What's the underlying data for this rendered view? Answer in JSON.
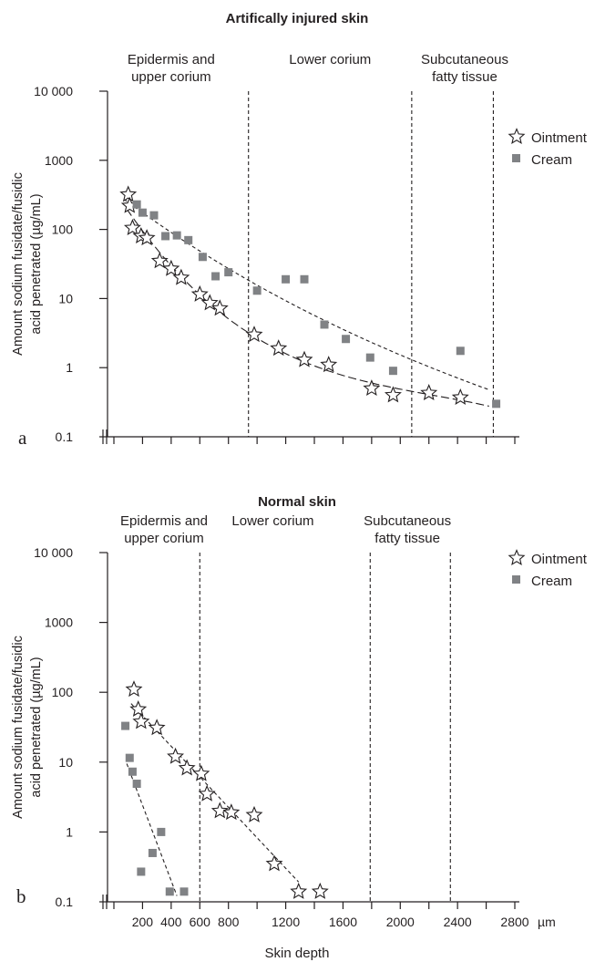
{
  "chart_data": [
    {
      "type": "scatter",
      "panel_label": "a",
      "title": "Artifically injured skin",
      "ylabel_lines": [
        "Amount sodium fusidate/fusidic",
        "acid penetrated (µg/mL)"
      ],
      "xlabel": "",
      "y_scale": "log",
      "ylim": [
        0.1,
        10000
      ],
      "xlim": [
        0,
        2800
      ],
      "y_ticks": [
        "10 000",
        "1000",
        "100",
        "10",
        "1",
        "0.1"
      ],
      "regions": [
        {
          "lines": [
            "Epidermis and",
            "upper corium"
          ],
          "center_x": 400
        },
        {
          "lines": [
            "Lower corium"
          ],
          "center_x": 1510
        },
        {
          "lines": [
            "Subcutaneous",
            "fatty tissue"
          ],
          "center_x": 2450
        }
      ],
      "boundaries": [
        940,
        2080,
        2650
      ],
      "legend": {
        "position": "right",
        "entries": [
          "Ointment",
          "Cream"
        ]
      },
      "series": [
        {
          "name": "Ointment",
          "marker": "star",
          "x": [
            100,
            110,
            130,
            190,
            230,
            320,
            400,
            470,
            600,
            670,
            740,
            980,
            1150,
            1330,
            1500,
            1800,
            1950,
            2200,
            2420
          ],
          "y": [
            320,
            220,
            105,
            80,
            75,
            35,
            27,
            20,
            11.5,
            8.6,
            7.2,
            3.0,
            1.9,
            1.3,
            1.1,
            0.5,
            0.4,
            0.43,
            0.37
          ]
        },
        {
          "name": "Cream",
          "marker": "square",
          "x": [
            160,
            200,
            280,
            360,
            440,
            520,
            620,
            710,
            800,
            1000,
            1200,
            1330,
            1470,
            1620,
            1790,
            1950,
            2420,
            2670
          ],
          "y": [
            230,
            175,
            160,
            80,
            82,
            70,
            40,
            21,
            24,
            13,
            19,
            19,
            4.2,
            2.6,
            1.4,
            0.9,
            1.75,
            0.3
          ]
        }
      ]
    },
    {
      "type": "scatter",
      "panel_label": "b",
      "title": "Normal skin",
      "ylabel_lines": [
        "Amount sodium fusidate/fusidic",
        "acid penetrated (µg/mL)"
      ],
      "xlabel": "Skin depth",
      "x_unit": "µm",
      "y_scale": "log",
      "ylim": [
        0.1,
        10000
      ],
      "xlim": [
        0,
        2800
      ],
      "x_ticks": [
        "200",
        "400",
        "600",
        "800",
        "1200",
        "1600",
        "2000",
        "2400",
        "2800"
      ],
      "y_ticks": [
        "10 000",
        "1000",
        "100",
        "10",
        "1",
        "0.1"
      ],
      "regions": [
        {
          "lines": [
            "Epidermis and",
            "upper corium"
          ],
          "center_x": 350
        },
        {
          "lines": [
            "Lower corium"
          ],
          "center_x": 1110
        },
        {
          "lines": [
            "Subcutaneous",
            "fatty tissue"
          ],
          "center_x": 2050
        }
      ],
      "boundaries": [
        600,
        1790,
        2350
      ],
      "legend": {
        "position": "right",
        "entries": [
          "Ointment",
          "Cream"
        ]
      },
      "series": [
        {
          "name": "Ointment",
          "marker": "star",
          "x": [
            140,
            170,
            190,
            300,
            430,
            510,
            610,
            650,
            740,
            820,
            980,
            1120,
            1290,
            1440
          ],
          "y": [
            110,
            57,
            38,
            31,
            12,
            8.2,
            6.8,
            3.5,
            2.0,
            1.9,
            1.75,
            0.35,
            0.14,
            0.14
          ]
        },
        {
          "name": "Cream",
          "marker": "square",
          "x": [
            80,
            110,
            130,
            160,
            190,
            270,
            330,
            390,
            490
          ],
          "y": [
            33,
            11.5,
            7.3,
            4.9,
            0.27,
            0.5,
            1.0,
            0.14,
            0.14
          ]
        }
      ]
    }
  ]
}
